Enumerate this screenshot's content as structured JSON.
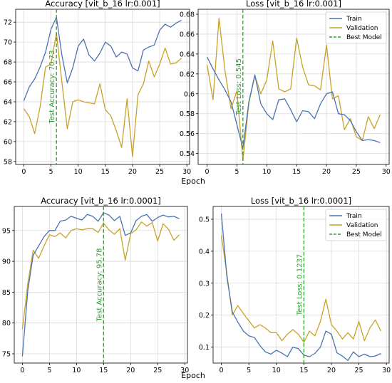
{
  "colors": {
    "train": "#4c72b0",
    "validation": "#c9a227",
    "best": "#2ca02c",
    "grid": "#d9d9d9"
  },
  "labels": {
    "shared_xlabel_top": "Epoch",
    "shared_xlabel_bottom": "Epoch"
  },
  "chart_data": [
    {
      "type": "line",
      "title": "Accuracy [vit_b_16 lr:0.001]",
      "xlabel": "",
      "ylabel": "",
      "xlim": [
        -1.5,
        30.5
      ],
      "ylim": [
        57.7,
        73.3
      ],
      "xticks": [
        0,
        5,
        10,
        15,
        20,
        25,
        30
      ],
      "yticks": [
        58,
        60,
        62,
        64,
        66,
        68,
        70,
        72
      ],
      "grid": true,
      "x": [
        0,
        1,
        2,
        3,
        4,
        5,
        6,
        7,
        8,
        9,
        10,
        11,
        12,
        13,
        14,
        15,
        16,
        17,
        18,
        19,
        20,
        21,
        22,
        23,
        24,
        25,
        26,
        27,
        28,
        29
      ],
      "series": [
        {
          "key": "train",
          "values": [
            64.1,
            65.5,
            66.3,
            67.5,
            69.0,
            71.3,
            72.5,
            68.7,
            65.9,
            67.4,
            69.6,
            70.3,
            68.7,
            68.1,
            68.9,
            70.0,
            69.6,
            68.5,
            69.0,
            68.8,
            67.4,
            67.1,
            69.2,
            69.5,
            69.7,
            71.2,
            71.8,
            71.5,
            71.9,
            72.2
          ]
        },
        {
          "key": "validation",
          "values": [
            63.3,
            62.5,
            60.8,
            63.5,
            67.5,
            67.8,
            70.9,
            66.0,
            61.3,
            64.0,
            64.2,
            64.0,
            63.9,
            63.8,
            65.8,
            63.2,
            62.6,
            61.1,
            59.4,
            64.3,
            58.5,
            64.7,
            65.8,
            68.1,
            66.5,
            67.8,
            69.4,
            67.8,
            67.9,
            68.4
          ]
        }
      ],
      "best_epoch": 6,
      "annotation": "Test Accuracy: 70.73",
      "legend": null
    },
    {
      "type": "line",
      "title": "Loss [vit_b_16 lr:0.001]",
      "xlabel": "",
      "ylabel": "",
      "xlim": [
        -1.5,
        30.5
      ],
      "ylim": [
        0.529,
        0.685
      ],
      "xticks": [
        0,
        5,
        10,
        15,
        20,
        25,
        30
      ],
      "yticks": [
        0.54,
        0.56,
        0.58,
        0.6,
        0.62,
        0.64,
        0.66,
        0.68
      ],
      "grid": true,
      "x": [
        0,
        1,
        2,
        3,
        4,
        5,
        6,
        7,
        8,
        9,
        10,
        11,
        12,
        13,
        14,
        15,
        16,
        17,
        18,
        19,
        20,
        21,
        22,
        23,
        24,
        25,
        26,
        27,
        28,
        29
      ],
      "series": [
        {
          "key": "train",
          "name": "Train",
          "values": [
            0.637,
            0.625,
            0.614,
            0.604,
            0.592,
            0.569,
            0.545,
            0.592,
            0.619,
            0.59,
            0.58,
            0.574,
            0.594,
            0.595,
            0.584,
            0.572,
            0.583,
            0.582,
            0.575,
            0.59,
            0.6,
            0.602,
            0.58,
            0.579,
            0.573,
            0.562,
            0.553,
            0.554,
            0.553,
            0.551
          ]
        },
        {
          "key": "validation",
          "name": "Validation",
          "values": [
            0.629,
            0.594,
            0.676,
            0.623,
            0.585,
            0.603,
            0.533,
            0.591,
            0.618,
            0.6,
            0.614,
            0.653,
            0.605,
            0.602,
            0.605,
            0.656,
            0.627,
            0.609,
            0.608,
            0.604,
            0.649,
            0.595,
            0.598,
            0.564,
            0.575,
            0.557,
            0.553,
            0.577,
            0.565,
            0.579
          ]
        }
      ],
      "best_epoch": 6,
      "annotation": "Test Loss: 0.545",
      "legend": {
        "placement": "top-right",
        "entries": [
          "Train",
          "Validation",
          "Best Model"
        ]
      }
    },
    {
      "type": "line",
      "title": "Accuracy [vit_b_16 lr:0.0001]",
      "xlabel": "",
      "ylabel": "",
      "xlim": [
        -1.5,
        30.5
      ],
      "ylim": [
        73.5,
        98.9
      ],
      "xticks": [
        0,
        5,
        10,
        15,
        20,
        25,
        30
      ],
      "yticks": [
        75,
        80,
        85,
        90,
        95
      ],
      "grid": true,
      "x": [
        0,
        1,
        2,
        3,
        4,
        5,
        6,
        7,
        8,
        9,
        10,
        11,
        12,
        13,
        14,
        15,
        16,
        17,
        18,
        19,
        20,
        21,
        22,
        23,
        24,
        25,
        26,
        27,
        28,
        29
      ],
      "series": [
        {
          "key": "train",
          "values": [
            74.6,
            85.3,
            91.0,
            92.5,
            94.0,
            95.0,
            95.0,
            96.5,
            96.7,
            97.3,
            97.0,
            96.7,
            97.6,
            97.3,
            96.5,
            97.9,
            97.5,
            96.6,
            97.3,
            94.2,
            94.6,
            96.6,
            97.3,
            97.6,
            96.5,
            97.1,
            97.5,
            97.2,
            97.3,
            96.9
          ]
        },
        {
          "key": "validation",
          "values": [
            79.0,
            86.4,
            91.8,
            90.5,
            92.5,
            94.3,
            94.0,
            94.6,
            93.8,
            95.0,
            95.3,
            95.1,
            95.3,
            95.3,
            94.7,
            96.2,
            95.1,
            94.4,
            95.3,
            90.2,
            94.5,
            95.1,
            96.4,
            95.7,
            96.3,
            93.3,
            96.1,
            95.2,
            93.4,
            94.3
          ]
        }
      ],
      "best_epoch": 15,
      "annotation": "Test Accuracy: 95.78",
      "legend": null
    },
    {
      "type": "line",
      "title": "Loss [vit_b_16 lr:0.0001]",
      "xlabel": "",
      "ylabel": "",
      "xlim": [
        -1.5,
        30.5
      ],
      "ylim": [
        0.05,
        0.54
      ],
      "xticks": [
        0,
        5,
        10,
        15,
        20,
        25,
        30
      ],
      "yticks": [
        0.1,
        0.2,
        0.3,
        0.4,
        0.5
      ],
      "grid": true,
      "x": [
        0,
        1,
        2,
        3,
        4,
        5,
        6,
        7,
        8,
        9,
        10,
        11,
        12,
        13,
        14,
        15,
        16,
        17,
        18,
        19,
        20,
        21,
        22,
        23,
        24,
        25,
        26,
        27,
        28,
        29
      ],
      "series": [
        {
          "key": "train",
          "name": "Train",
          "values": [
            0.518,
            0.32,
            0.21,
            0.178,
            0.15,
            0.135,
            0.13,
            0.105,
            0.085,
            0.078,
            0.09,
            0.081,
            0.07,
            0.1,
            0.095,
            0.075,
            0.07,
            0.08,
            0.1,
            0.15,
            0.14,
            0.082,
            0.072,
            0.058,
            0.085,
            0.07,
            0.078,
            0.07,
            0.072,
            0.08
          ]
        },
        {
          "key": "validation",
          "name": "Validation",
          "values": [
            0.45,
            0.33,
            0.2,
            0.23,
            0.205,
            0.182,
            0.16,
            0.17,
            0.16,
            0.145,
            0.145,
            0.12,
            0.14,
            0.155,
            0.14,
            0.115,
            0.15,
            0.135,
            0.18,
            0.25,
            0.17,
            0.15,
            0.125,
            0.145,
            0.125,
            0.18,
            0.12,
            0.16,
            0.185,
            0.15
          ]
        }
      ],
      "best_epoch": 15,
      "annotation": "Test Loss: 0.1237",
      "legend": {
        "placement": "top-right",
        "entries": [
          "Train",
          "Validation",
          "Best Model"
        ]
      }
    }
  ]
}
